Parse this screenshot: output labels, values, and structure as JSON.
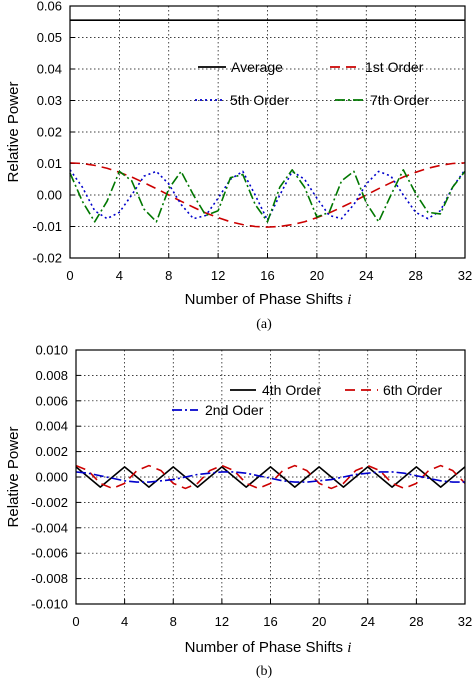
{
  "chart_data": [
    {
      "type": "line",
      "caption": "(a)",
      "xlabel": "Number of Phase Shifts",
      "xlabel_var": "i",
      "ylabel": "Relative Power",
      "xlim": [
        0,
        32
      ],
      "ylim": [
        -0.02,
        0.06
      ],
      "grid": true,
      "xticks": [
        "0",
        "4",
        "8",
        "12",
        "16",
        "20",
        "24",
        "28",
        "32"
      ],
      "yticks": [
        "-0.02",
        "-0.01",
        "0.00",
        "0.01",
        "0.02",
        "0.03",
        "0.04",
        "0.05",
        "0.06"
      ],
      "x": [
        0,
        1,
        2,
        3,
        4,
        5,
        6,
        7,
        8,
        9,
        10,
        11,
        12,
        13,
        14,
        15,
        16,
        17,
        18,
        19,
        20,
        21,
        22,
        23,
        24,
        25,
        26,
        27,
        28,
        29,
        30,
        31,
        32
      ],
      "series": [
        {
          "name": "Average",
          "color": "#000000",
          "dash": "",
          "values": [
            0.0555,
            0.0555,
            0.0555,
            0.0555,
            0.0555,
            0.0555,
            0.0555,
            0.0555,
            0.0555,
            0.0555,
            0.0555,
            0.0555,
            0.0555,
            0.0555,
            0.0555,
            0.0555,
            0.0555,
            0.0555,
            0.0555,
            0.0555,
            0.0555,
            0.0555,
            0.0555,
            0.0555,
            0.0555,
            0.0555,
            0.0555,
            0.0555,
            0.0555,
            0.0555,
            0.0555,
            0.0555,
            0.0555
          ]
        },
        {
          "name": "1st Order",
          "color": "#cc0000",
          "dash": "10 6",
          "values": [
            0.0102,
            0.01,
            0.0094,
            0.0085,
            0.0072,
            0.0057,
            0.0039,
            0.002,
            0.0,
            -0.002,
            -0.0039,
            -0.0057,
            -0.0072,
            -0.0085,
            -0.0094,
            -0.01,
            -0.0102,
            -0.01,
            -0.0094,
            -0.0085,
            -0.0072,
            -0.0057,
            -0.0039,
            -0.002,
            0.0,
            0.002,
            0.0039,
            0.0057,
            0.0072,
            0.0085,
            0.0094,
            0.01,
            0.0102
          ]
        },
        {
          "name": "5th Order",
          "color": "#0000cc",
          "dash": "2 3",
          "values": [
            0.008,
            0.0025,
            -0.005,
            -0.0075,
            -0.0055,
            0.0,
            0.006,
            0.0075,
            0.0035,
            -0.003,
            -0.0075,
            -0.0065,
            -0.001,
            0.005,
            0.0075,
            0.0,
            -0.008,
            0.0,
            0.0075,
            0.005,
            -0.001,
            -0.0065,
            -0.0075,
            -0.003,
            0.0035,
            0.0075,
            0.006,
            0.0,
            -0.0055,
            -0.0075,
            -0.005,
            0.0025,
            0.008
          ]
        },
        {
          "name": "7th Order",
          "color": "#007700",
          "dash": "10 3 2 3",
          "values": [
            0.007,
            -0.002,
            -0.0085,
            -0.002,
            0.0075,
            0.0045,
            -0.0045,
            -0.0085,
            0.002,
            0.0075,
            0.0,
            -0.0065,
            -0.005,
            0.0055,
            0.0065,
            -0.003,
            -0.0085,
            0.0025,
            0.008,
            0.0025,
            -0.007,
            -0.0055,
            0.0045,
            0.0075,
            -0.0025,
            -0.0085,
            0.0,
            0.008,
            0.0005,
            -0.0055,
            -0.006,
            0.0025,
            0.0075
          ]
        }
      ],
      "legend": {
        "placement": "upper-right"
      }
    },
    {
      "type": "line",
      "caption": "(b)",
      "xlabel": "Number of Phase Shifts",
      "xlabel_var": "i",
      "ylabel": "Relative Power",
      "xlim": [
        0,
        32
      ],
      "ylim": [
        -0.01,
        0.01
      ],
      "grid": true,
      "xticks": [
        "0",
        "4",
        "8",
        "12",
        "16",
        "20",
        "24",
        "28",
        "32"
      ],
      "yticks": [
        "-0.010",
        "-0.008",
        "-0.006",
        "-0.004",
        "-0.002",
        "0.000",
        "0.002",
        "0.004",
        "0.006",
        "0.008",
        "0.010"
      ],
      "x": [
        0,
        1,
        2,
        3,
        4,
        5,
        6,
        7,
        8,
        9,
        10,
        11,
        12,
        13,
        14,
        15,
        16,
        17,
        18,
        19,
        20,
        21,
        22,
        23,
        24,
        25,
        26,
        27,
        28,
        29,
        30,
        31,
        32
      ],
      "series": [
        {
          "name": "4th Order",
          "color": "#000000",
          "dash": "",
          "values": [
            0.0008,
            0.0,
            -0.0008,
            0.0,
            0.0008,
            0.0,
            -0.0008,
            0.0,
            0.0008,
            0.0,
            -0.0008,
            0.0,
            0.0008,
            0.0,
            -0.0008,
            0.0,
            0.0008,
            0.0,
            -0.0008,
            0.0,
            0.0008,
            0.0,
            -0.0008,
            0.0,
            0.0008,
            0.0,
            -0.0008,
            0.0,
            0.0008,
            0.0,
            -0.0008,
            0.0,
            0.0008
          ]
        },
        {
          "name": "6th Order",
          "color": "#cc0000",
          "dash": "10 6",
          "values": [
            0.0009,
            0.0005,
            -0.0005,
            -0.0009,
            -0.0005,
            0.0005,
            0.0009,
            0.0005,
            -0.0005,
            -0.0009,
            -0.0005,
            0.0005,
            0.0009,
            0.0005,
            -0.0005,
            -0.0009,
            -0.0005,
            0.0005,
            0.0009,
            0.0005,
            -0.0005,
            -0.0009,
            -0.0005,
            0.0005,
            0.0009,
            0.0005,
            -0.0005,
            -0.0009,
            -0.0005,
            0.0005,
            0.0009,
            0.0005,
            -0.0005
          ]
        },
        {
          "name": "2nd Oder",
          "color": "#0000cc",
          "dash": "10 3 2 3",
          "values": [
            0.0004,
            0.0003,
            0.0001,
            -0.0001,
            -0.0003,
            -0.0004,
            -0.0004,
            -0.0003,
            -0.0002,
            0.0,
            0.0002,
            0.0003,
            0.0004,
            0.0004,
            0.0003,
            0.0001,
            -0.0001,
            -0.0003,
            -0.0004,
            -0.0004,
            -0.0003,
            -0.0002,
            0.0,
            0.0002,
            0.0003,
            0.0004,
            0.0004,
            0.0003,
            0.0001,
            -0.0001,
            -0.0003,
            -0.0004,
            -0.0004
          ]
        }
      ],
      "legend": {
        "placement": "top-right"
      }
    }
  ]
}
